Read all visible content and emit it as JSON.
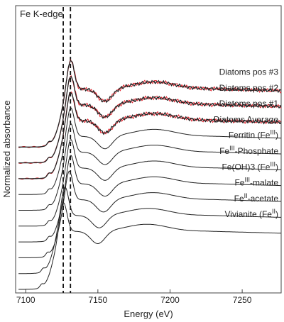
{
  "chart_data": {
    "type": "line",
    "title": "Fe K-edge",
    "xlabel": "Energy (eV)",
    "ylabel": "Normalized absorbance",
    "xlim": [
      7093,
      7277
    ],
    "x_ticks": [
      7100,
      7150,
      7200,
      7250
    ],
    "reference_lines_eV": [
      7126,
      7131
    ],
    "grid": false,
    "legend": "none",
    "series": [
      {
        "base": "Vivianite (Fe",
        "sup": "II",
        "tail": ")",
        "offset": 0,
        "peak": 7126,
        "color": "#222222"
      },
      {
        "base": "Fe",
        "sup": "II",
        "tail": "-acetate",
        "offset": 1,
        "peak": 7127,
        "color": "#222222"
      },
      {
        "base": "Fe",
        "sup": "III",
        "tail": "-malate",
        "offset": 2,
        "peak": 7130,
        "color": "#222222"
      },
      {
        "base": "Fe(OH)3 (Fe",
        "sup": "III",
        "tail": ")",
        "offset": 3,
        "peak": 7131,
        "color": "#222222"
      },
      {
        "base": "Fe",
        "sup": "III",
        "tail": "-Phosphate",
        "offset": 4,
        "peak": 7131,
        "color": "#222222"
      },
      {
        "base": "Ferritin (Fe",
        "sup": "III",
        "tail": ")",
        "offset": 5,
        "peak": 7131,
        "color": "#222222"
      },
      {
        "base": "Diatoms Average",
        "sup": "",
        "tail": "",
        "offset": 6,
        "peak": 7131,
        "color": "#222222"
      },
      {
        "base": "Diatoms pos #1",
        "sup": "",
        "tail": "",
        "offset": 7,
        "peak": 7131,
        "color": "#222222",
        "fit_color": "#e0202a"
      },
      {
        "base": "Diatoms pos #2",
        "sup": "",
        "tail": "",
        "offset": 8,
        "peak": 7131,
        "color": "#222222",
        "fit_color": "#e0202a"
      },
      {
        "base": "Diatoms pos #3",
        "sup": "",
        "tail": "",
        "offset": 9,
        "peak": 7131,
        "color": "#222222",
        "fit_color": "#e0202a"
      }
    ]
  }
}
